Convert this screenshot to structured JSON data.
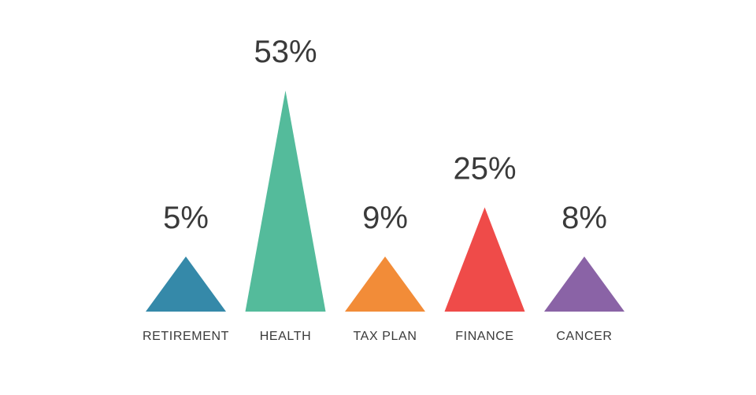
{
  "chart_data": {
    "type": "bar",
    "mark_shape": "triangle",
    "categories": [
      "RETIREMENT",
      "HEALTH",
      "TAX PLAN",
      "FINANCE",
      "CANCER"
    ],
    "values": [
      5,
      53,
      9,
      25,
      8
    ],
    "value_labels": [
      "5%",
      "53%",
      "9%",
      "25%",
      "8%"
    ],
    "colors": [
      "#3589a9",
      "#54bb9b",
      "#f28c38",
      "#ef4b49",
      "#8a63a6"
    ],
    "value_unit": "%",
    "grid": false,
    "legend": "none",
    "title": "",
    "xlabel": "",
    "ylabel": ""
  }
}
